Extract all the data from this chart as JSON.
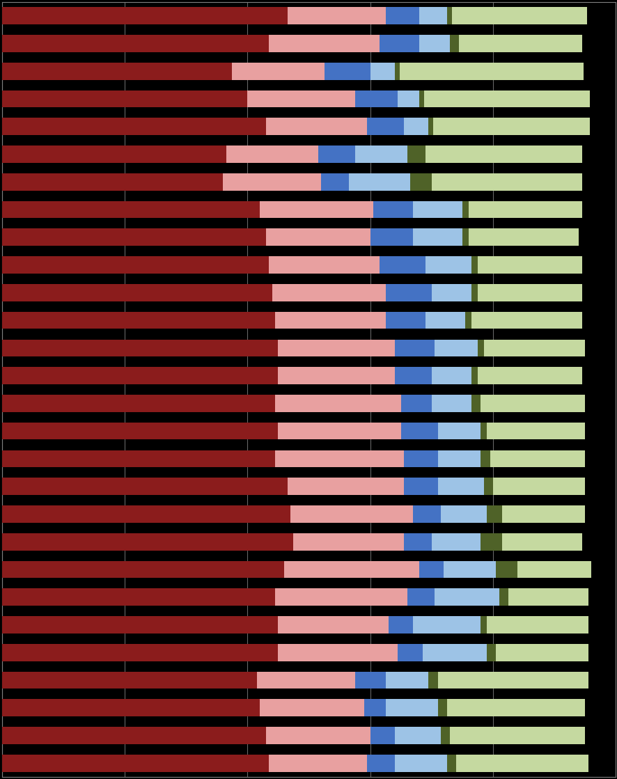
{
  "bars": [
    [
      46.5,
      16.0,
      5.5,
      4.5,
      0.8,
      22.0
    ],
    [
      43.5,
      18.0,
      6.5,
      5.0,
      1.5,
      20.0
    ],
    [
      37.5,
      15.0,
      7.5,
      4.0,
      0.8,
      30.0
    ],
    [
      40.0,
      17.5,
      7.0,
      3.5,
      0.8,
      27.0
    ],
    [
      43.0,
      16.5,
      6.0,
      4.0,
      0.8,
      25.5
    ],
    [
      36.5,
      15.0,
      6.0,
      8.5,
      3.0,
      25.5
    ],
    [
      36.0,
      16.0,
      4.5,
      10.0,
      3.5,
      24.5
    ],
    [
      42.0,
      18.5,
      6.5,
      8.0,
      1.0,
      18.5
    ],
    [
      43.0,
      17.0,
      7.0,
      8.0,
      1.0,
      18.0
    ],
    [
      43.5,
      18.0,
      7.5,
      7.5,
      1.0,
      17.0
    ],
    [
      44.0,
      18.5,
      7.5,
      6.5,
      1.0,
      17.0
    ],
    [
      44.5,
      18.0,
      6.5,
      6.5,
      1.0,
      18.0
    ],
    [
      45.0,
      19.0,
      6.5,
      7.0,
      1.0,
      16.5
    ],
    [
      45.0,
      19.0,
      6.0,
      6.5,
      1.0,
      17.0
    ],
    [
      44.5,
      20.5,
      5.0,
      6.5,
      1.5,
      17.0
    ],
    [
      45.0,
      20.0,
      6.0,
      7.0,
      1.0,
      16.0
    ],
    [
      44.5,
      21.0,
      5.5,
      7.0,
      1.5,
      15.5
    ],
    [
      46.5,
      19.0,
      5.5,
      7.5,
      1.5,
      15.0
    ],
    [
      47.0,
      20.0,
      4.5,
      7.5,
      2.5,
      13.5
    ],
    [
      47.5,
      18.0,
      4.5,
      8.0,
      3.5,
      13.0
    ],
    [
      46.0,
      22.0,
      4.0,
      8.5,
      3.5,
      12.0
    ],
    [
      44.5,
      21.5,
      4.5,
      10.5,
      1.5,
      13.0
    ],
    [
      45.0,
      18.0,
      4.0,
      11.0,
      1.0,
      16.5
    ],
    [
      45.0,
      19.5,
      4.0,
      10.5,
      1.5,
      15.0
    ],
    [
      41.5,
      16.0,
      5.0,
      7.0,
      1.5,
      24.5
    ],
    [
      42.0,
      17.0,
      3.5,
      8.5,
      1.5,
      22.5
    ],
    [
      43.0,
      17.0,
      4.0,
      7.5,
      1.5,
      22.0
    ],
    [
      43.5,
      16.0,
      4.5,
      8.5,
      1.5,
      21.5
    ]
  ],
  "colors": [
    "#8B1C1C",
    "#E8A0A0",
    "#4472C4",
    "#9DC3E6",
    "#4F6228",
    "#C5D9A0"
  ],
  "background_color": "#000000",
  "gridline_color": "#808080",
  "bar_height": 0.62,
  "figsize": [
    8.87,
    11.19
  ],
  "dpi": 100,
  "xlim": [
    0,
    100
  ],
  "n_gridlines": 6,
  "xticks": [
    0,
    20,
    40,
    60,
    80,
    100
  ]
}
